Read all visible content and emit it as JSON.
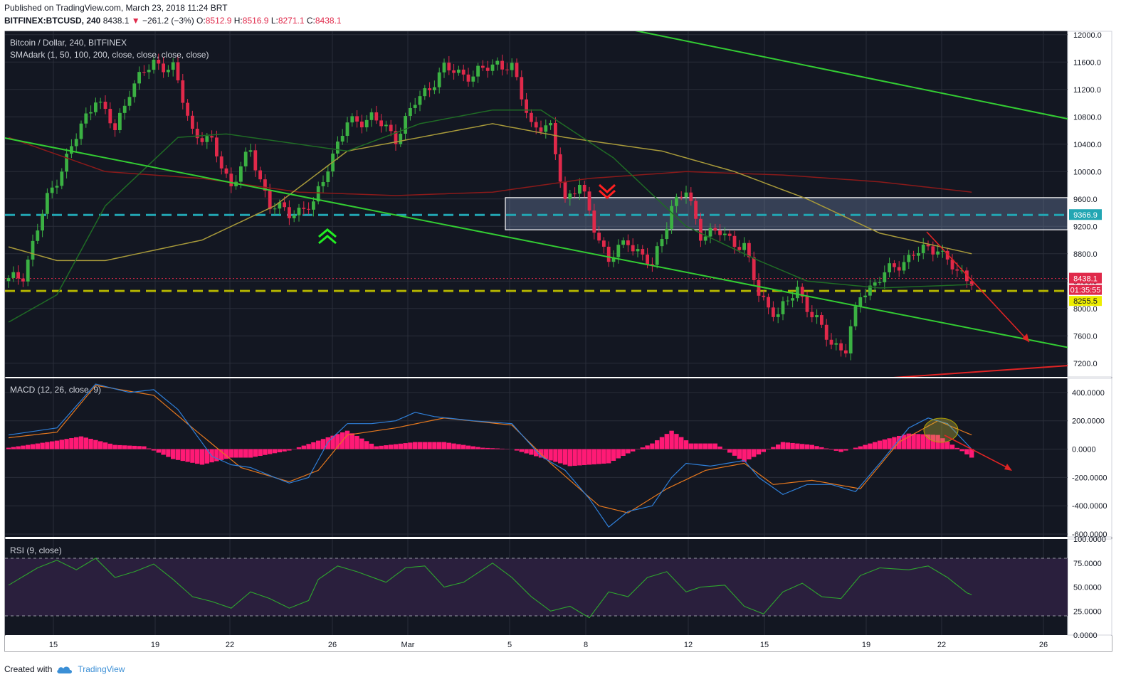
{
  "header": {
    "published": "Published on TradingView.com, March 23, 2018 11:24 BRT",
    "symbol": "BITFINEX:BTCUSD, 240",
    "last": "8438.1",
    "change_arrow": "▼",
    "change": "−261.2 (−3%)",
    "o_label": "O:",
    "o": "8512.9",
    "h_label": "H:",
    "h": "8516.9",
    "l_label": "L:",
    "l": "8271.1",
    "c_label": "C:",
    "c": "8438.1"
  },
  "footer": {
    "created_with": "Created with",
    "brand": "TradingView",
    "logo_icon": "tradingview-cloud-icon"
  },
  "colors": {
    "bg": "#131722",
    "grid": "#2a2e39",
    "up": "#3bb143",
    "down": "#e0294a",
    "sma50": "#1f6b25",
    "sma100": "#a89a3a",
    "sma200": "#8b1a1a",
    "trend_green": "#33cc33",
    "trend_red": "#e02424",
    "cyan": "#22a6b3",
    "yellow": "#b3b300",
    "macd": "#2f7fd8",
    "signal": "#e6781e",
    "hist": "#ff1a75",
    "rsi": "#2ea62e",
    "rsi_band": "#2a1f3d"
  },
  "chart_data": [
    {
      "type": "candlestick",
      "title": "Bitcoin / Dollar, 240, BITFINEX",
      "indicator_label": "SMAdark (1, 50, 100, 200, close, close, close, close)",
      "x_ticks": [
        "15",
        "19",
        "22",
        "26",
        "Mar",
        "5",
        "8",
        "12",
        "15",
        "19",
        "22",
        "26"
      ],
      "y_ticks": [
        12000,
        11600,
        11200,
        10800,
        10400,
        10000,
        9600,
        9200,
        8800,
        8400,
        8000,
        7600,
        7200
      ],
      "y_tick_labels": [
        "12000.0",
        "11600.0",
        "11200.0",
        "10800.0",
        "10400.0",
        "10000.0",
        "9600.0",
        "9200.0",
        "8800.0",
        "8400.0",
        "8000.0",
        "7600.0",
        "7200.0"
      ],
      "ylim": [
        7000,
        12050
      ],
      "price_path": [
        [
          0,
          8400
        ],
        [
          3,
          8500
        ],
        [
          8,
          9600
        ],
        [
          12,
          10200
        ],
        [
          18,
          11100
        ],
        [
          22,
          10600
        ],
        [
          25,
          11200
        ],
        [
          30,
          11600
        ],
        [
          34,
          11500
        ],
        [
          38,
          10600
        ],
        [
          42,
          10400
        ],
        [
          46,
          9800
        ],
        [
          50,
          10300
        ],
        [
          54,
          9500
        ],
        [
          58,
          9400
        ],
        [
          63,
          9500
        ],
        [
          66,
          10100
        ],
        [
          70,
          10700
        ],
        [
          75,
          10800
        ],
        [
          80,
          10500
        ],
        [
          84,
          11000
        ],
        [
          90,
          11500
        ],
        [
          96,
          11400
        ],
        [
          101,
          11600
        ],
        [
          104,
          11500
        ],
        [
          108,
          10700
        ],
        [
          112,
          10600
        ],
        [
          115,
          9600
        ],
        [
          118,
          9800
        ],
        [
          121,
          9200
        ],
        [
          124,
          8700
        ],
        [
          128,
          9000
        ],
        [
          133,
          8600
        ],
        [
          137,
          9500
        ],
        [
          140,
          9700
        ],
        [
          143,
          9100
        ],
        [
          147,
          9100
        ],
        [
          152,
          8900
        ],
        [
          155,
          8200
        ],
        [
          159,
          7900
        ],
        [
          163,
          8300
        ],
        [
          166,
          7900
        ],
        [
          170,
          7500
        ],
        [
          173,
          7400
        ],
        [
          176,
          8200
        ],
        [
          181,
          8500
        ],
        [
          187,
          8800
        ],
        [
          192,
          8900
        ],
        [
          196,
          8500
        ],
        [
          199,
          8438
        ]
      ],
      "sma50_path": [
        [
          0,
          7800
        ],
        [
          10,
          8200
        ],
        [
          20,
          9500
        ],
        [
          35,
          10500
        ],
        [
          45,
          10550
        ],
        [
          55,
          10450
        ],
        [
          70,
          10300
        ],
        [
          85,
          10700
        ],
        [
          100,
          10900
        ],
        [
          110,
          10900
        ],
        [
          125,
          10200
        ],
        [
          140,
          9200
        ],
        [
          155,
          8700
        ],
        [
          165,
          8400
        ],
        [
          180,
          8300
        ],
        [
          199,
          8350
        ]
      ],
      "sma100_path": [
        [
          0,
          8900
        ],
        [
          10,
          8700
        ],
        [
          20,
          8700
        ],
        [
          40,
          9000
        ],
        [
          55,
          9500
        ],
        [
          70,
          10300
        ],
        [
          85,
          10500
        ],
        [
          100,
          10700
        ],
        [
          115,
          10500
        ],
        [
          135,
          10300
        ],
        [
          150,
          10000
        ],
        [
          165,
          9600
        ],
        [
          180,
          9100
        ],
        [
          199,
          8800
        ]
      ],
      "sma200_path": [
        [
          0,
          10500
        ],
        [
          20,
          10000
        ],
        [
          40,
          9900
        ],
        [
          60,
          9700
        ],
        [
          80,
          9650
        ],
        [
          100,
          9700
        ],
        [
          120,
          9900
        ],
        [
          140,
          10000
        ],
        [
          160,
          9950
        ],
        [
          180,
          9850
        ],
        [
          199,
          9700
        ]
      ],
      "bar_count": 200,
      "price_labels": {
        "last": "8438.1",
        "timer": "01:35:55",
        "cyan_level": "9366.9",
        "yellow_level": "8255.5"
      },
      "levels": {
        "last": 8438.1,
        "cyan": 9366.9,
        "yellow": 8255.5
      },
      "zone": [
        9150,
        9620
      ],
      "trendlines": [
        {
          "color": "green",
          "from": [
            -5,
            10550
          ],
          "to": [
            300,
            6300
          ]
        },
        {
          "color": "green",
          "from": [
            -5,
            14000
          ],
          "to": [
            300,
            9600
          ]
        },
        {
          "color": "red",
          "from": [
            0,
            6100
          ],
          "to": [
            300,
            7560
          ]
        }
      ],
      "annotations": [
        "buy-arrow-up",
        "sell-arrow-down",
        "projection-arrow"
      ]
    },
    {
      "type": "line",
      "title": "MACD (12, 26, close, 9)",
      "y_ticks": [
        400,
        200,
        0,
        -200,
        -400,
        -600
      ],
      "y_tick_labels": [
        "400.0000",
        "200.0000",
        "0.0000",
        "-200.0000",
        "-400.0000",
        "-600.0000"
      ],
      "ylim": [
        -620,
        500
      ],
      "series": [
        {
          "name": "MACD",
          "path": [
            [
              0,
              100
            ],
            [
              10,
              150
            ],
            [
              18,
              460
            ],
            [
              25,
              400
            ],
            [
              30,
              420
            ],
            [
              35,
              280
            ],
            [
              42,
              -50
            ],
            [
              46,
              -110
            ],
            [
              50,
              -130
            ],
            [
              55,
              -200
            ],
            [
              58,
              -240
            ],
            [
              62,
              -200
            ],
            [
              66,
              50
            ],
            [
              70,
              180
            ],
            [
              75,
              180
            ],
            [
              80,
              200
            ],
            [
              84,
              260
            ],
            [
              88,
              230
            ],
            [
              96,
              200
            ],
            [
              104,
              180
            ],
            [
              110,
              -50
            ],
            [
              115,
              -150
            ],
            [
              120,
              -350
            ],
            [
              124,
              -550
            ],
            [
              128,
              -440
            ],
            [
              133,
              -400
            ],
            [
              137,
              -200
            ],
            [
              140,
              -100
            ],
            [
              145,
              -120
            ],
            [
              152,
              -80
            ],
            [
              155,
              -200
            ],
            [
              160,
              -320
            ],
            [
              165,
              -250
            ],
            [
              170,
              -250
            ],
            [
              175,
              -300
            ],
            [
              180,
              -100
            ],
            [
              186,
              150
            ],
            [
              190,
              220
            ],
            [
              194,
              180
            ],
            [
              199,
              0
            ]
          ]
        },
        {
          "name": "Signal",
          "path": [
            [
              0,
              80
            ],
            [
              10,
              120
            ],
            [
              18,
              450
            ],
            [
              30,
              380
            ],
            [
              38,
              150
            ],
            [
              48,
              -130
            ],
            [
              58,
              -230
            ],
            [
              64,
              -150
            ],
            [
              70,
              100
            ],
            [
              80,
              150
            ],
            [
              90,
              220
            ],
            [
              104,
              170
            ],
            [
              112,
              -100
            ],
            [
              122,
              -400
            ],
            [
              128,
              -450
            ],
            [
              136,
              -280
            ],
            [
              144,
              -150
            ],
            [
              152,
              -100
            ],
            [
              158,
              -250
            ],
            [
              166,
              -220
            ],
            [
              176,
              -280
            ],
            [
              184,
              50
            ],
            [
              192,
              200
            ],
            [
              199,
              100
            ]
          ]
        }
      ],
      "histogram_path": [
        [
          0,
          10
        ],
        [
          10,
          60
        ],
        [
          15,
          90
        ],
        [
          22,
          30
        ],
        [
          28,
          20
        ],
        [
          34,
          -70
        ],
        [
          40,
          -110
        ],
        [
          46,
          -60
        ],
        [
          50,
          -60
        ],
        [
          58,
          -10
        ],
        [
          64,
          60
        ],
        [
          70,
          130
        ],
        [
          76,
          20
        ],
        [
          84,
          50
        ],
        [
          90,
          50
        ],
        [
          98,
          10
        ],
        [
          104,
          0
        ],
        [
          110,
          -60
        ],
        [
          116,
          -120
        ],
        [
          124,
          -100
        ],
        [
          128,
          -30
        ],
        [
          133,
          40
        ],
        [
          137,
          130
        ],
        [
          141,
          40
        ],
        [
          146,
          40
        ],
        [
          152,
          -90
        ],
        [
          156,
          -20
        ],
        [
          160,
          50
        ],
        [
          166,
          30
        ],
        [
          172,
          -20
        ],
        [
          180,
          60
        ],
        [
          186,
          110
        ],
        [
          192,
          100
        ],
        [
          199,
          -60
        ]
      ]
    },
    {
      "type": "line",
      "title": "RSI (9, close)",
      "y_ticks": [
        100,
        75,
        50,
        25,
        0
      ],
      "y_tick_labels": [
        "100.0000",
        "75.0000",
        "50.0000",
        "25.0000",
        "0.0000"
      ],
      "ylim": [
        0,
        100
      ],
      "band": [
        20,
        80
      ],
      "series": [
        {
          "name": "RSI",
          "path": [
            [
              0,
              52
            ],
            [
              6,
              70
            ],
            [
              10,
              78
            ],
            [
              14,
              68
            ],
            [
              18,
              80
            ],
            [
              22,
              60
            ],
            [
              26,
              66
            ],
            [
              30,
              74
            ],
            [
              34,
              58
            ],
            [
              38,
              40
            ],
            [
              42,
              35
            ],
            [
              46,
              28
            ],
            [
              50,
              45
            ],
            [
              54,
              38
            ],
            [
              58,
              28
            ],
            [
              62,
              36
            ],
            [
              64,
              58
            ],
            [
              68,
              72
            ],
            [
              72,
              66
            ],
            [
              78,
              55
            ],
            [
              82,
              70
            ],
            [
              86,
              72
            ],
            [
              90,
              50
            ],
            [
              94,
              55
            ],
            [
              100,
              75
            ],
            [
              104,
              60
            ],
            [
              108,
              40
            ],
            [
              112,
              25
            ],
            [
              116,
              30
            ],
            [
              120,
              18
            ],
            [
              124,
              45
            ],
            [
              128,
              40
            ],
            [
              132,
              60
            ],
            [
              136,
              66
            ],
            [
              140,
              45
            ],
            [
              143,
              50
            ],
            [
              148,
              52
            ],
            [
              152,
              30
            ],
            [
              156,
              22
            ],
            [
              160,
              45
            ],
            [
              164,
              54
            ],
            [
              168,
              40
            ],
            [
              172,
              38
            ],
            [
              176,
              62
            ],
            [
              180,
              70
            ],
            [
              186,
              68
            ],
            [
              190,
              72
            ],
            [
              194,
              60
            ],
            [
              198,
              44
            ],
            [
              199,
              42
            ]
          ]
        }
      ]
    }
  ]
}
